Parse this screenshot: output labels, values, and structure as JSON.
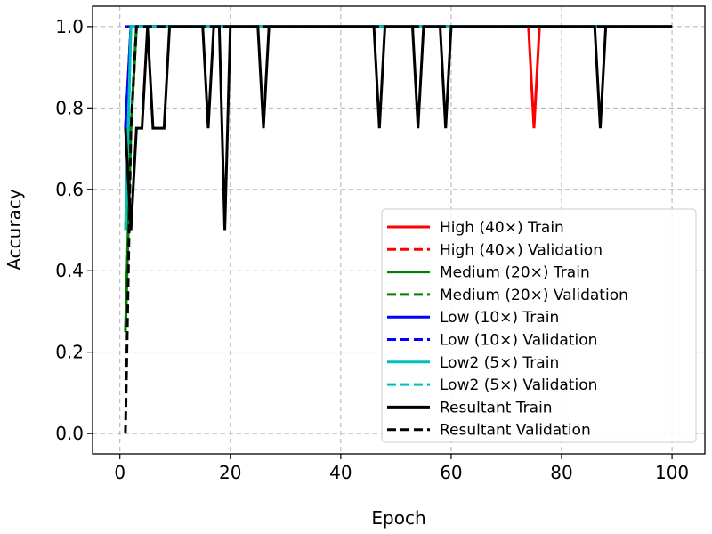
{
  "chart_data": {
    "type": "line",
    "xlabel": "Epoch",
    "ylabel": "Accuracy",
    "xlim": [
      -4.95,
      105.95
    ],
    "ylim": [
      -0.05,
      1.05
    ],
    "xticks": [
      0,
      20,
      40,
      60,
      80,
      100
    ],
    "yticks": [
      0.0,
      0.2,
      0.4,
      0.6,
      0.8,
      1.0
    ],
    "xtick_labels": [
      "0",
      "20",
      "40",
      "60",
      "80",
      "100"
    ],
    "ytick_labels": [
      "0.0",
      "0.2",
      "0.4",
      "0.6",
      "0.8",
      "1.0"
    ],
    "grid": true,
    "legend_position": "lower right",
    "series": [
      {
        "name": "High (40×) Train",
        "color": "#ff0000",
        "dash": "solid",
        "points": [
          [
            1,
            0.75
          ],
          [
            2,
            1.0
          ],
          [
            74,
            1.0
          ],
          [
            75,
            0.75
          ],
          [
            76,
            1.0
          ],
          [
            100,
            1.0
          ]
        ]
      },
      {
        "name": "High (40×) Validation",
        "color": "#ff0000",
        "dash": "dashed",
        "points": [
          [
            1,
            0.75
          ],
          [
            2,
            1.0
          ],
          [
            100,
            1.0
          ]
        ]
      },
      {
        "name": "Medium (20×) Train",
        "color": "#008000",
        "dash": "solid",
        "points": [
          [
            1,
            0.25
          ],
          [
            2,
            0.75
          ],
          [
            3,
            1.0
          ],
          [
            100,
            1.0
          ]
        ]
      },
      {
        "name": "Medium (20×) Validation",
        "color": "#008000",
        "dash": "dashed",
        "points": [
          [
            1,
            0.25
          ],
          [
            2,
            0.75
          ],
          [
            3,
            1.0
          ],
          [
            100,
            1.0
          ]
        ]
      },
      {
        "name": "Low (10×) Train",
        "color": "#0000ff",
        "dash": "solid",
        "points": [
          [
            1,
            0.75
          ],
          [
            2,
            1.0
          ],
          [
            100,
            1.0
          ]
        ]
      },
      {
        "name": "Low (10×) Validation",
        "color": "#0000ff",
        "dash": "dashed",
        "points": [
          [
            1,
            1.0
          ],
          [
            100,
            1.0
          ]
        ]
      },
      {
        "name": "Low2 (5×) Train",
        "color": "#00bfbf",
        "dash": "solid",
        "points": [
          [
            1,
            0.5
          ],
          [
            2,
            1.0
          ],
          [
            100,
            1.0
          ]
        ]
      },
      {
        "name": "Low2 (5×) Validation",
        "color": "#00bfbf",
        "dash": "dashed",
        "points": [
          [
            1,
            0.5
          ],
          [
            2,
            1.0
          ],
          [
            100,
            1.0
          ]
        ]
      },
      {
        "name": "Resultant Train",
        "color": "#000000",
        "dash": "solid",
        "points": [
          [
            1,
            0.75
          ],
          [
            2,
            0.5
          ],
          [
            3,
            0.75
          ],
          [
            4,
            0.75
          ],
          [
            5,
            1.0
          ],
          [
            6,
            0.75
          ],
          [
            7,
            0.75
          ],
          [
            8,
            0.75
          ],
          [
            9,
            1.0
          ],
          [
            15,
            1.0
          ],
          [
            16,
            0.75
          ],
          [
            17,
            1.0
          ],
          [
            18,
            1.0
          ],
          [
            19,
            0.5
          ],
          [
            20,
            1.0
          ],
          [
            25,
            1.0
          ],
          [
            26,
            0.75
          ],
          [
            27,
            1.0
          ],
          [
            46,
            1.0
          ],
          [
            47,
            0.75
          ],
          [
            48,
            1.0
          ],
          [
            53,
            1.0
          ],
          [
            54,
            0.75
          ],
          [
            55,
            1.0
          ],
          [
            58,
            1.0
          ],
          [
            59,
            0.75
          ],
          [
            60,
            1.0
          ],
          [
            86,
            1.0
          ],
          [
            87,
            0.75
          ],
          [
            88,
            1.0
          ],
          [
            100,
            1.0
          ]
        ]
      },
      {
        "name": "Resultant Validation",
        "color": "#000000",
        "dash": "dashed",
        "points": [
          [
            1,
            0.0
          ],
          [
            2,
            0.75
          ],
          [
            3,
            1.0
          ],
          [
            100,
            1.0
          ]
        ]
      }
    ]
  }
}
